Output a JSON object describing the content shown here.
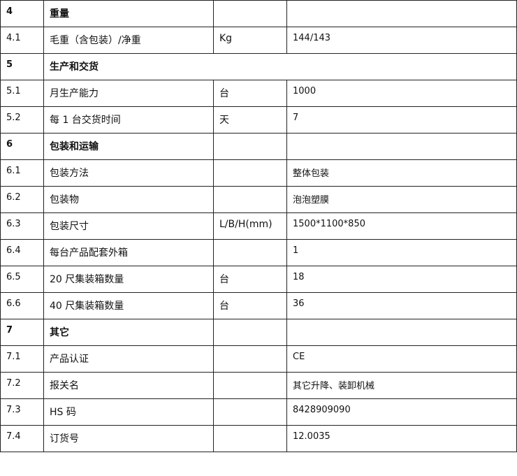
{
  "rows": [
    {
      "no": "4",
      "name": "重量",
      "unit": "",
      "value": "",
      "section": true
    },
    {
      "no": "4.1",
      "name": "毛重（含包装）/净重",
      "unit": "Kg",
      "value": "144/143"
    },
    {
      "no": "5",
      "name": "生产和交货",
      "section": true,
      "span": true
    },
    {
      "no": "5.1",
      "name": "月生产能力",
      "unit": "台",
      "value": "1000"
    },
    {
      "no": "5.2",
      "name": "每 1 台交货时间",
      "unit": "天",
      "value": "7"
    },
    {
      "no": "6",
      "name": "包装和运输",
      "unit": "",
      "value": "",
      "section": true
    },
    {
      "no": "6.1",
      "name": "包装方法",
      "unit": "",
      "value": "整体包装"
    },
    {
      "no": "6.2",
      "name": "包装物",
      "unit": "",
      "value": "泡泡塑膜"
    },
    {
      "no": "6.3",
      "name": "包装尺寸",
      "unit": "L/B/H(mm)",
      "value": "1500*1100*850"
    },
    {
      "no": "6.4",
      "name": "每台产品配套外箱",
      "unit": "",
      "value": "1"
    },
    {
      "no": "6.5",
      "name": "20 尺集装箱数量",
      "unit": "台",
      "value": "18"
    },
    {
      "no": "6.6",
      "name": "40 尺集装箱数量",
      "unit": "台",
      "value": "36"
    },
    {
      "no": "7",
      "name": "其它",
      "unit": "",
      "value": "",
      "section": true
    },
    {
      "no": "7.1",
      "name": "产品认证",
      "unit": "",
      "value": "CE"
    },
    {
      "no": "7.2",
      "name": "报关名",
      "unit": "",
      "value": "其它升降、装卸机械"
    },
    {
      "no": "7.3",
      "name": "HS 码",
      "unit": "",
      "value": "8428909090"
    },
    {
      "no": "7.4",
      "name": "订货号",
      "unit": "",
      "value": "12.0035"
    }
  ]
}
